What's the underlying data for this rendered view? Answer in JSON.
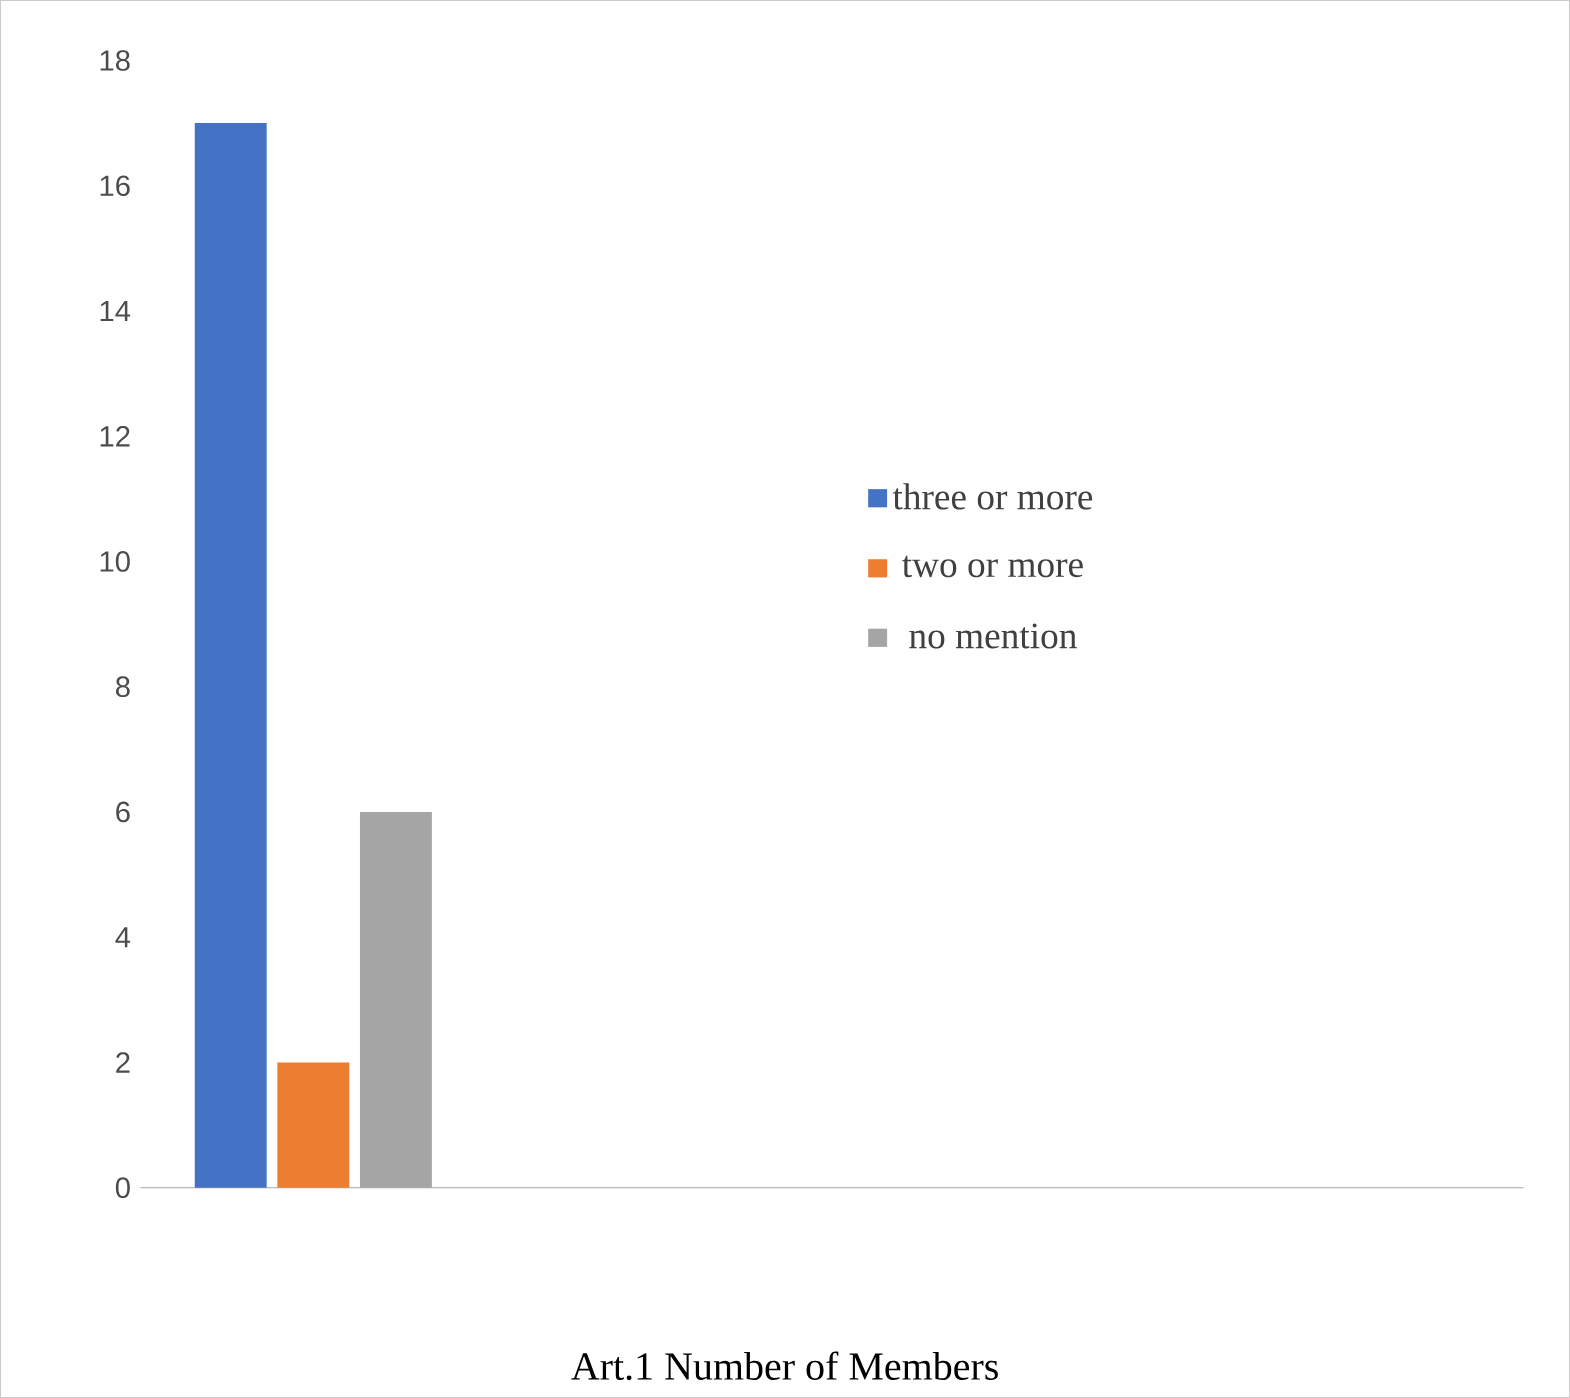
{
  "chart_data": {
    "type": "bar",
    "title": "Art.1 Number of Members",
    "categories": [
      null,
      null,
      null,
      null
    ],
    "series": [
      {
        "name": "three or more",
        "color": "#4472c4",
        "values": [
          17,
          null,
          null,
          null
        ]
      },
      {
        "name": "two or more",
        "color": "#ed7d31",
        "values": [
          2,
          null,
          null,
          null
        ]
      },
      {
        "name": "no mention",
        "color": "#a5a5a5",
        "values": [
          6,
          null,
          null,
          null
        ]
      }
    ],
    "ylim": [
      0,
      18
    ],
    "yticks": [
      0,
      2,
      4,
      6,
      8,
      10,
      12,
      14,
      16,
      18
    ],
    "grid": false,
    "legend": "right"
  }
}
